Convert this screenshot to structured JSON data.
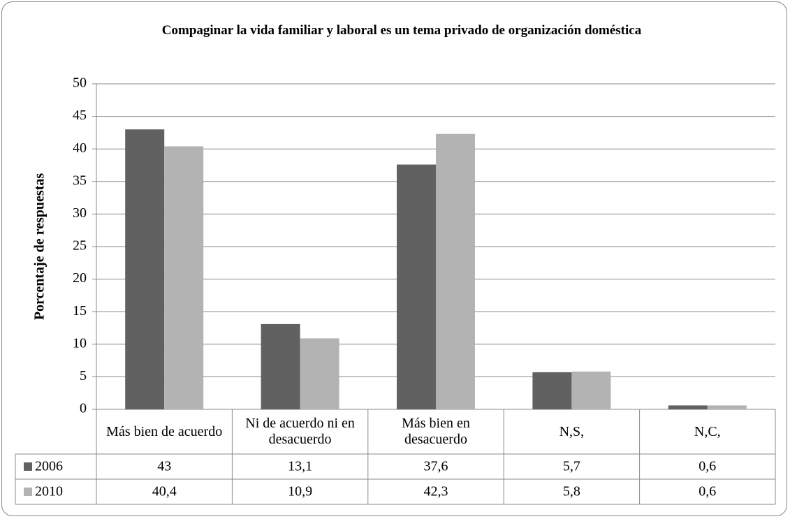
{
  "chart_data": {
    "type": "bar",
    "title": "Compaginar la vida familiar y laboral es un tema privado de organización doméstica",
    "y_label": "Porcentaje de respuestas",
    "categories": [
      "Más bien de acuerdo",
      "Ni de acuerdo ni en desacuerdo",
      "Más bien en desacuerdo",
      "N,S,",
      "N,C,"
    ],
    "series": [
      {
        "name": "2006",
        "color": "#616161",
        "values": [
          43,
          13.1,
          37.6,
          5.7,
          0.6
        ],
        "value_labels": [
          "43",
          "13,1",
          "37,6",
          "5,7",
          "0,6"
        ]
      },
      {
        "name": "2010",
        "color": "#b3b3b3",
        "values": [
          40.4,
          10.9,
          42.3,
          5.8,
          0.6
        ],
        "value_labels": [
          "40,4",
          "10,9",
          "42,3",
          "5,8",
          "0,6"
        ]
      }
    ],
    "ylim": [
      0,
      50
    ],
    "yticks": [
      0,
      5,
      10,
      15,
      20,
      25,
      30,
      35,
      40,
      45,
      50
    ],
    "grid": true,
    "legend": "table"
  }
}
